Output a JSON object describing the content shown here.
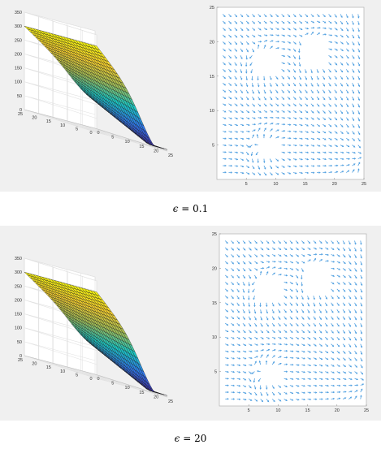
{
  "panels": [
    {
      "caption_symbol": "ϵ",
      "caption_rest": " = 0.1"
    },
    {
      "caption_symbol": "ϵ",
      "caption_rest": " = 20"
    }
  ],
  "chart_data": [
    {
      "type": "surface",
      "panel": 0,
      "zlim": [
        0,
        350
      ],
      "zticks": [
        0,
        50,
        100,
        150,
        200,
        250,
        300,
        350
      ],
      "xlim": [
        0,
        25
      ],
      "xticks": [
        0,
        5,
        10,
        15,
        20,
        25
      ],
      "ylim": [
        0,
        25
      ],
      "yticks": [
        0,
        5,
        10,
        15,
        20,
        25
      ],
      "grid": true,
      "colormap": [
        "#3e26a8",
        "#2e78ec",
        "#1ac7c2",
        "#a5be55",
        "#f9d12e",
        "#f9fb0e"
      ],
      "z_corners": {
        "x0y25": 300,
        "x25y25": 310,
        "x25y0": 50,
        "x0y0": 120
      },
      "z_min": 5
    },
    {
      "type": "quiver",
      "panel": 0,
      "xlim": [
        0,
        25
      ],
      "xticks": [
        5,
        10,
        15,
        20,
        25
      ],
      "ylim": [
        0,
        25
      ],
      "yticks": [
        5,
        10,
        15,
        20,
        25
      ],
      "arrow_color": "#4f9fe0",
      "goal": [
        20,
        7
      ],
      "obstacles": [
        {
          "x": [
            14.8,
            18.8
          ],
          "y": [
            16.8,
            20.5
          ]
        },
        {
          "x": [
            6.8,
            10.2
          ],
          "y": [
            15.2,
            18.5
          ]
        },
        {
          "x": [
            7.5,
            10.0
          ],
          "y": [
            4.0,
            5.2
          ]
        }
      ]
    },
    {
      "type": "surface",
      "panel": 1,
      "zlim": [
        0,
        350
      ],
      "zticks": [
        0,
        50,
        100,
        150,
        200,
        250,
        300,
        350
      ],
      "xlim": [
        0,
        25
      ],
      "xticks": [
        0,
        5,
        10,
        15,
        20,
        25
      ],
      "ylim": [
        0,
        25
      ],
      "yticks": [
        0,
        5,
        10,
        15,
        20,
        25
      ],
      "grid": true,
      "colormap": [
        "#3e26a8",
        "#2e78ec",
        "#1ac7c2",
        "#a5be55",
        "#f9d12e",
        "#f9fb0e"
      ],
      "z_corners": {
        "x0y25": 300,
        "x25y25": 310,
        "x25y0": 50,
        "x0y0": 120
      },
      "z_min": 5
    },
    {
      "type": "quiver",
      "panel": 1,
      "xlim": [
        0,
        25
      ],
      "xticks": [
        5,
        10,
        15,
        20,
        25
      ],
      "ylim": [
        0,
        25
      ],
      "yticks": [
        5,
        10,
        15,
        20,
        25
      ],
      "arrow_color": "#4f9fe0",
      "goal": [
        20,
        7
      ],
      "obstacles": [
        {
          "x": [
            14.8,
            18.8
          ],
          "y": [
            16.8,
            20.5
          ]
        },
        {
          "x": [
            6.8,
            10.2
          ],
          "y": [
            15.2,
            18.5
          ]
        },
        {
          "x": [
            7.5,
            10.0
          ],
          "y": [
            4.0,
            5.2
          ]
        }
      ]
    }
  ]
}
